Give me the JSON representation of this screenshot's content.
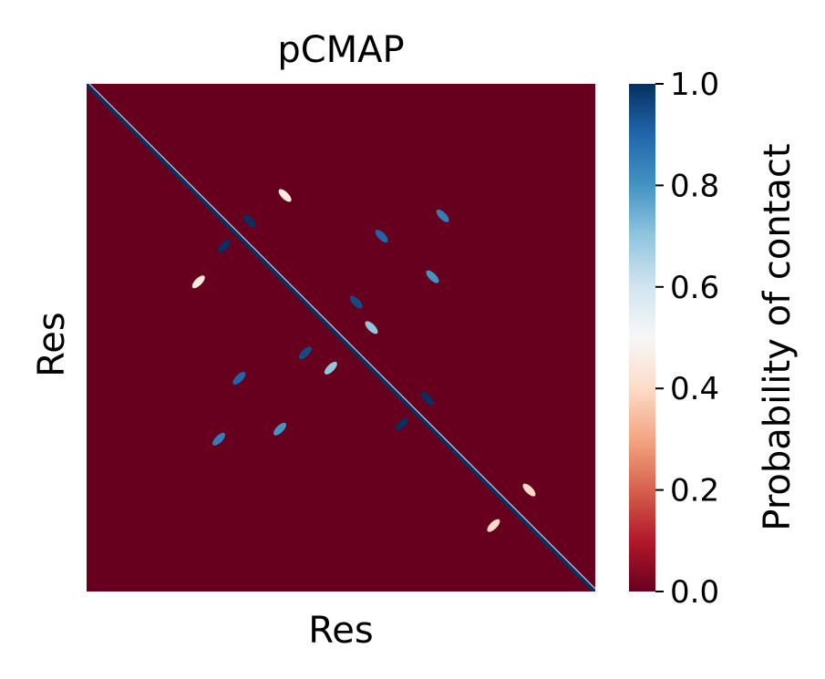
{
  "chart_data": {
    "type": "heatmap",
    "title": "pCMAP",
    "xlabel": "Res",
    "ylabel": "Res",
    "x_tick_labels": [],
    "y_tick_labels": [],
    "colorbar": {
      "label": "Probability of contact",
      "range": [
        0.0,
        1.0
      ],
      "colormap": "RdBu",
      "ticks": [
        {
          "value": 0.0,
          "label": "0.0"
        },
        {
          "value": 0.2,
          "label": "0.2"
        },
        {
          "value": 0.4,
          "label": "0.4"
        },
        {
          "value": 0.6,
          "label": "0.6"
        },
        {
          "value": 0.8,
          "label": "0.8"
        },
        {
          "value": 1.0,
          "label": "1.0"
        }
      ]
    },
    "background_value": 0.02,
    "diagonal_value": 1.0,
    "contact_features": [
      {
        "i": 0.27,
        "j": 0.32,
        "p": 1.0
      },
      {
        "i": 0.32,
        "j": 0.27,
        "p": 1.0
      },
      {
        "i": 0.43,
        "j": 0.53,
        "p": 0.95
      },
      {
        "i": 0.53,
        "j": 0.43,
        "p": 0.95
      },
      {
        "i": 0.48,
        "j": 0.56,
        "p": 0.7
      },
      {
        "i": 0.56,
        "j": 0.48,
        "p": 0.7
      },
      {
        "i": 0.62,
        "j": 0.67,
        "p": 1.0
      },
      {
        "i": 0.67,
        "j": 0.62,
        "p": 1.0
      },
      {
        "i": 0.3,
        "j": 0.58,
        "p": 0.9
      },
      {
        "i": 0.58,
        "j": 0.3,
        "p": 0.9
      },
      {
        "i": 0.26,
        "j": 0.7,
        "p": 0.85
      },
      {
        "i": 0.7,
        "j": 0.26,
        "p": 0.85
      },
      {
        "i": 0.38,
        "j": 0.68,
        "p": 0.8
      },
      {
        "i": 0.68,
        "j": 0.38,
        "p": 0.8
      },
      {
        "i": 0.22,
        "j": 0.39,
        "p": 0.45
      },
      {
        "i": 0.39,
        "j": 0.22,
        "p": 0.45
      },
      {
        "i": 0.8,
        "j": 0.87,
        "p": 0.4
      },
      {
        "i": 0.87,
        "j": 0.8,
        "p": 0.4
      }
    ]
  }
}
